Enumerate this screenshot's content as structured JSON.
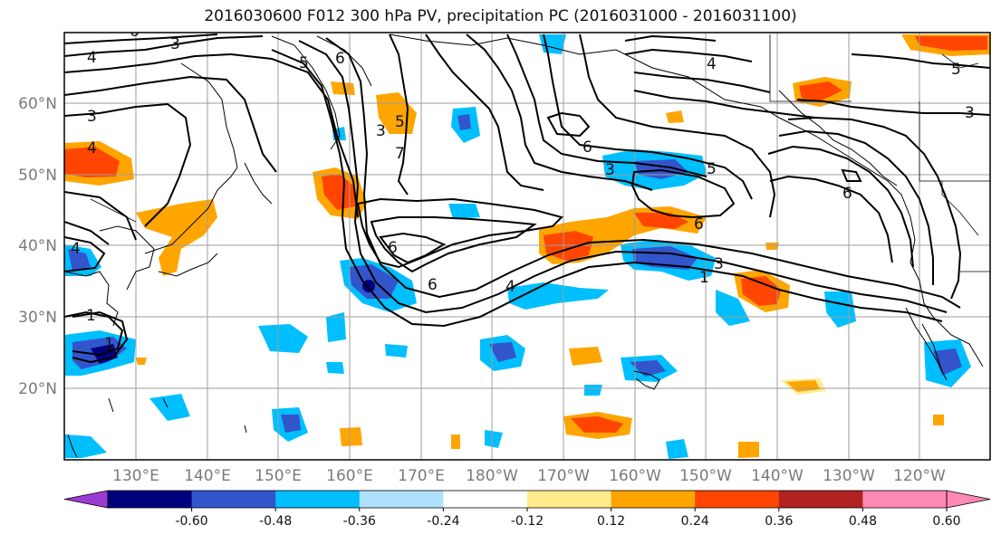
{
  "title": "2016030600 F012 300 hPa PV, precipitation PC (2016031000 - 2016031100)",
  "lat_labels": [
    "60°N",
    "50°N",
    "40°N",
    "30°N",
    "20°N"
  ],
  "lon_labels": [
    "130°E",
    "140°E",
    "150°E",
    "160°E",
    "170°E",
    "180°W",
    "170°W",
    "160°W",
    "150°W",
    "140°W",
    "130°W",
    "120°W"
  ],
  "colorbar": {
    "colors": [
      "#9a3bd4",
      "#00007e",
      "#3355cc",
      "#00bfff",
      "#b0e2ff",
      "#ffffff",
      "#ffeb8c",
      "#ffa500",
      "#ff4500",
      "#b22222",
      "#ff88b5",
      "#ff88b5"
    ],
    "ticks": [
      "-0.60",
      "-0.48",
      "-0.36",
      "-0.24",
      "-0.12",
      "0.12",
      "0.24",
      "0.36",
      "0.48",
      "0.60"
    ]
  },
  "pv_labels": [
    "4",
    "3",
    "4",
    "6",
    "3",
    "5",
    "6",
    "4",
    "5",
    "3",
    "3",
    "5",
    "7",
    "6",
    "3",
    "5",
    "6",
    "6",
    "6",
    "4",
    "3",
    "1",
    "1",
    "1",
    "4",
    "6"
  ]
}
